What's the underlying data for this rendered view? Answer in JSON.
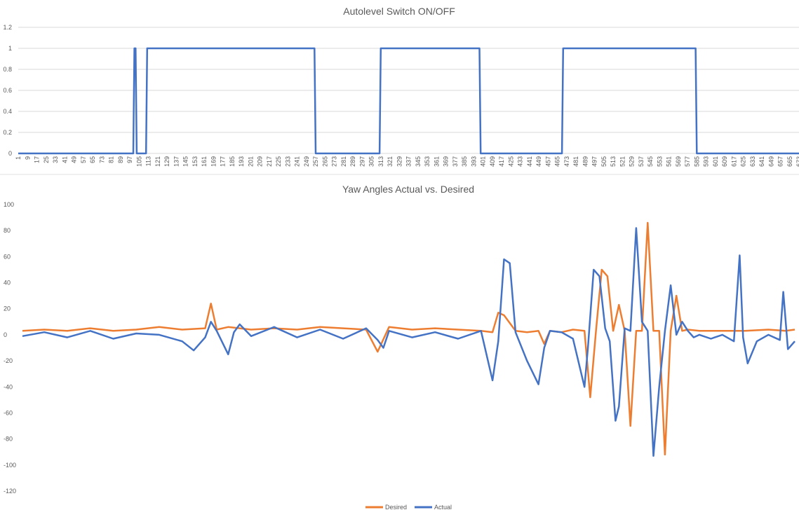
{
  "chart_data": [
    {
      "type": "line",
      "title": "Autolevel Switch ON/OFF",
      "xlabel": "",
      "ylabel": "",
      "ylim": [
        0,
        1.2
      ],
      "y_ticks": [
        "0",
        "0.2",
        "0.4",
        "0.6",
        "0.8",
        "1",
        "1.2"
      ],
      "xlim": [
        1,
        673
      ],
      "x_tick_start": 1,
      "x_tick_step": 8,
      "grid": true,
      "legend": "none",
      "colors": {
        "series": "#4472c4",
        "grid": "#d9d9d9",
        "text": "#595959"
      },
      "series": [
        {
          "x": [
            1,
            100,
            101,
            102,
            103,
            111,
            112,
            256,
            257,
            312,
            313,
            398,
            399,
            469,
            470,
            584,
            585,
            673
          ],
          "y": [
            0,
            0,
            1,
            1,
            0,
            0,
            1,
            1,
            0,
            0,
            1,
            1,
            0,
            0,
            1,
            1,
            0,
            0
          ]
        }
      ]
    },
    {
      "type": "line",
      "title": "Yaw Angles Actual vs. Desired",
      "xlabel": "",
      "ylabel": "",
      "ylim": [
        -120,
        100
      ],
      "y_ticks": [
        "100",
        "80",
        "60",
        "40",
        "20",
        "0",
        "-20",
        "-40",
        "-60",
        "-80",
        "-100",
        "-120"
      ],
      "xlim": [
        1,
        673
      ],
      "grid": false,
      "legend": "bottom",
      "series": [
        {
          "name": "Desired",
          "color": "#ed7d31",
          "x": [
            1,
            20,
            40,
            60,
            80,
            100,
            120,
            140,
            160,
            165,
            170,
            180,
            200,
            220,
            240,
            260,
            280,
            300,
            310,
            320,
            340,
            360,
            380,
            400,
            410,
            415,
            420,
            430,
            440,
            450,
            455,
            460,
            470,
            480,
            490,
            495,
            500,
            505,
            510,
            515,
            520,
            525,
            530,
            535,
            540,
            545,
            550,
            555,
            560,
            565,
            570,
            575,
            580,
            590,
            610,
            630,
            650,
            665,
            673
          ],
          "y": [
            3,
            4,
            3,
            5,
            3,
            4,
            6,
            4,
            5,
            24,
            4,
            6,
            4,
            5,
            4,
            6,
            5,
            4,
            -13,
            6,
            4,
            5,
            4,
            3,
            2,
            17,
            15,
            3,
            2,
            3,
            -7,
            3,
            2,
            4,
            3,
            -48,
            3,
            50,
            45,
            3,
            23,
            3,
            -70,
            3,
            3,
            86,
            3,
            3,
            -92,
            3,
            30,
            3,
            4,
            3,
            3,
            3,
            4,
            3,
            4
          ]
        },
        {
          "name": "Actual",
          "color": "#4472c4",
          "x": [
            1,
            20,
            40,
            60,
            80,
            100,
            120,
            140,
            150,
            160,
            165,
            170,
            180,
            185,
            190,
            200,
            220,
            240,
            260,
            280,
            300,
            310,
            315,
            320,
            340,
            360,
            380,
            400,
            410,
            415,
            420,
            425,
            430,
            440,
            450,
            455,
            460,
            470,
            480,
            490,
            493,
            498,
            503,
            508,
            512,
            517,
            520,
            525,
            530,
            535,
            540,
            545,
            550,
            555,
            560,
            565,
            570,
            575,
            580,
            585,
            590,
            600,
            610,
            620,
            625,
            628,
            632,
            640,
            650,
            660,
            663,
            667,
            673
          ],
          "y": [
            -1,
            2,
            -2,
            3,
            -3,
            1,
            0,
            -5,
            -12,
            -2,
            10,
            3,
            -15,
            2,
            8,
            -1,
            6,
            -2,
            4,
            -3,
            5,
            -4,
            -10,
            3,
            -2,
            2,
            -3,
            3,
            -35,
            -5,
            58,
            55,
            2,
            -20,
            -38,
            -10,
            3,
            2,
            -3,
            -40,
            -10,
            50,
            45,
            5,
            -5,
            -66,
            -55,
            5,
            3,
            82,
            10,
            3,
            -93,
            -40,
            3,
            38,
            0,
            10,
            3,
            -2,
            0,
            -3,
            0,
            -5,
            61,
            -2,
            -22,
            -5,
            0,
            -4,
            33,
            -11,
            -5
          ]
        }
      ]
    }
  ]
}
